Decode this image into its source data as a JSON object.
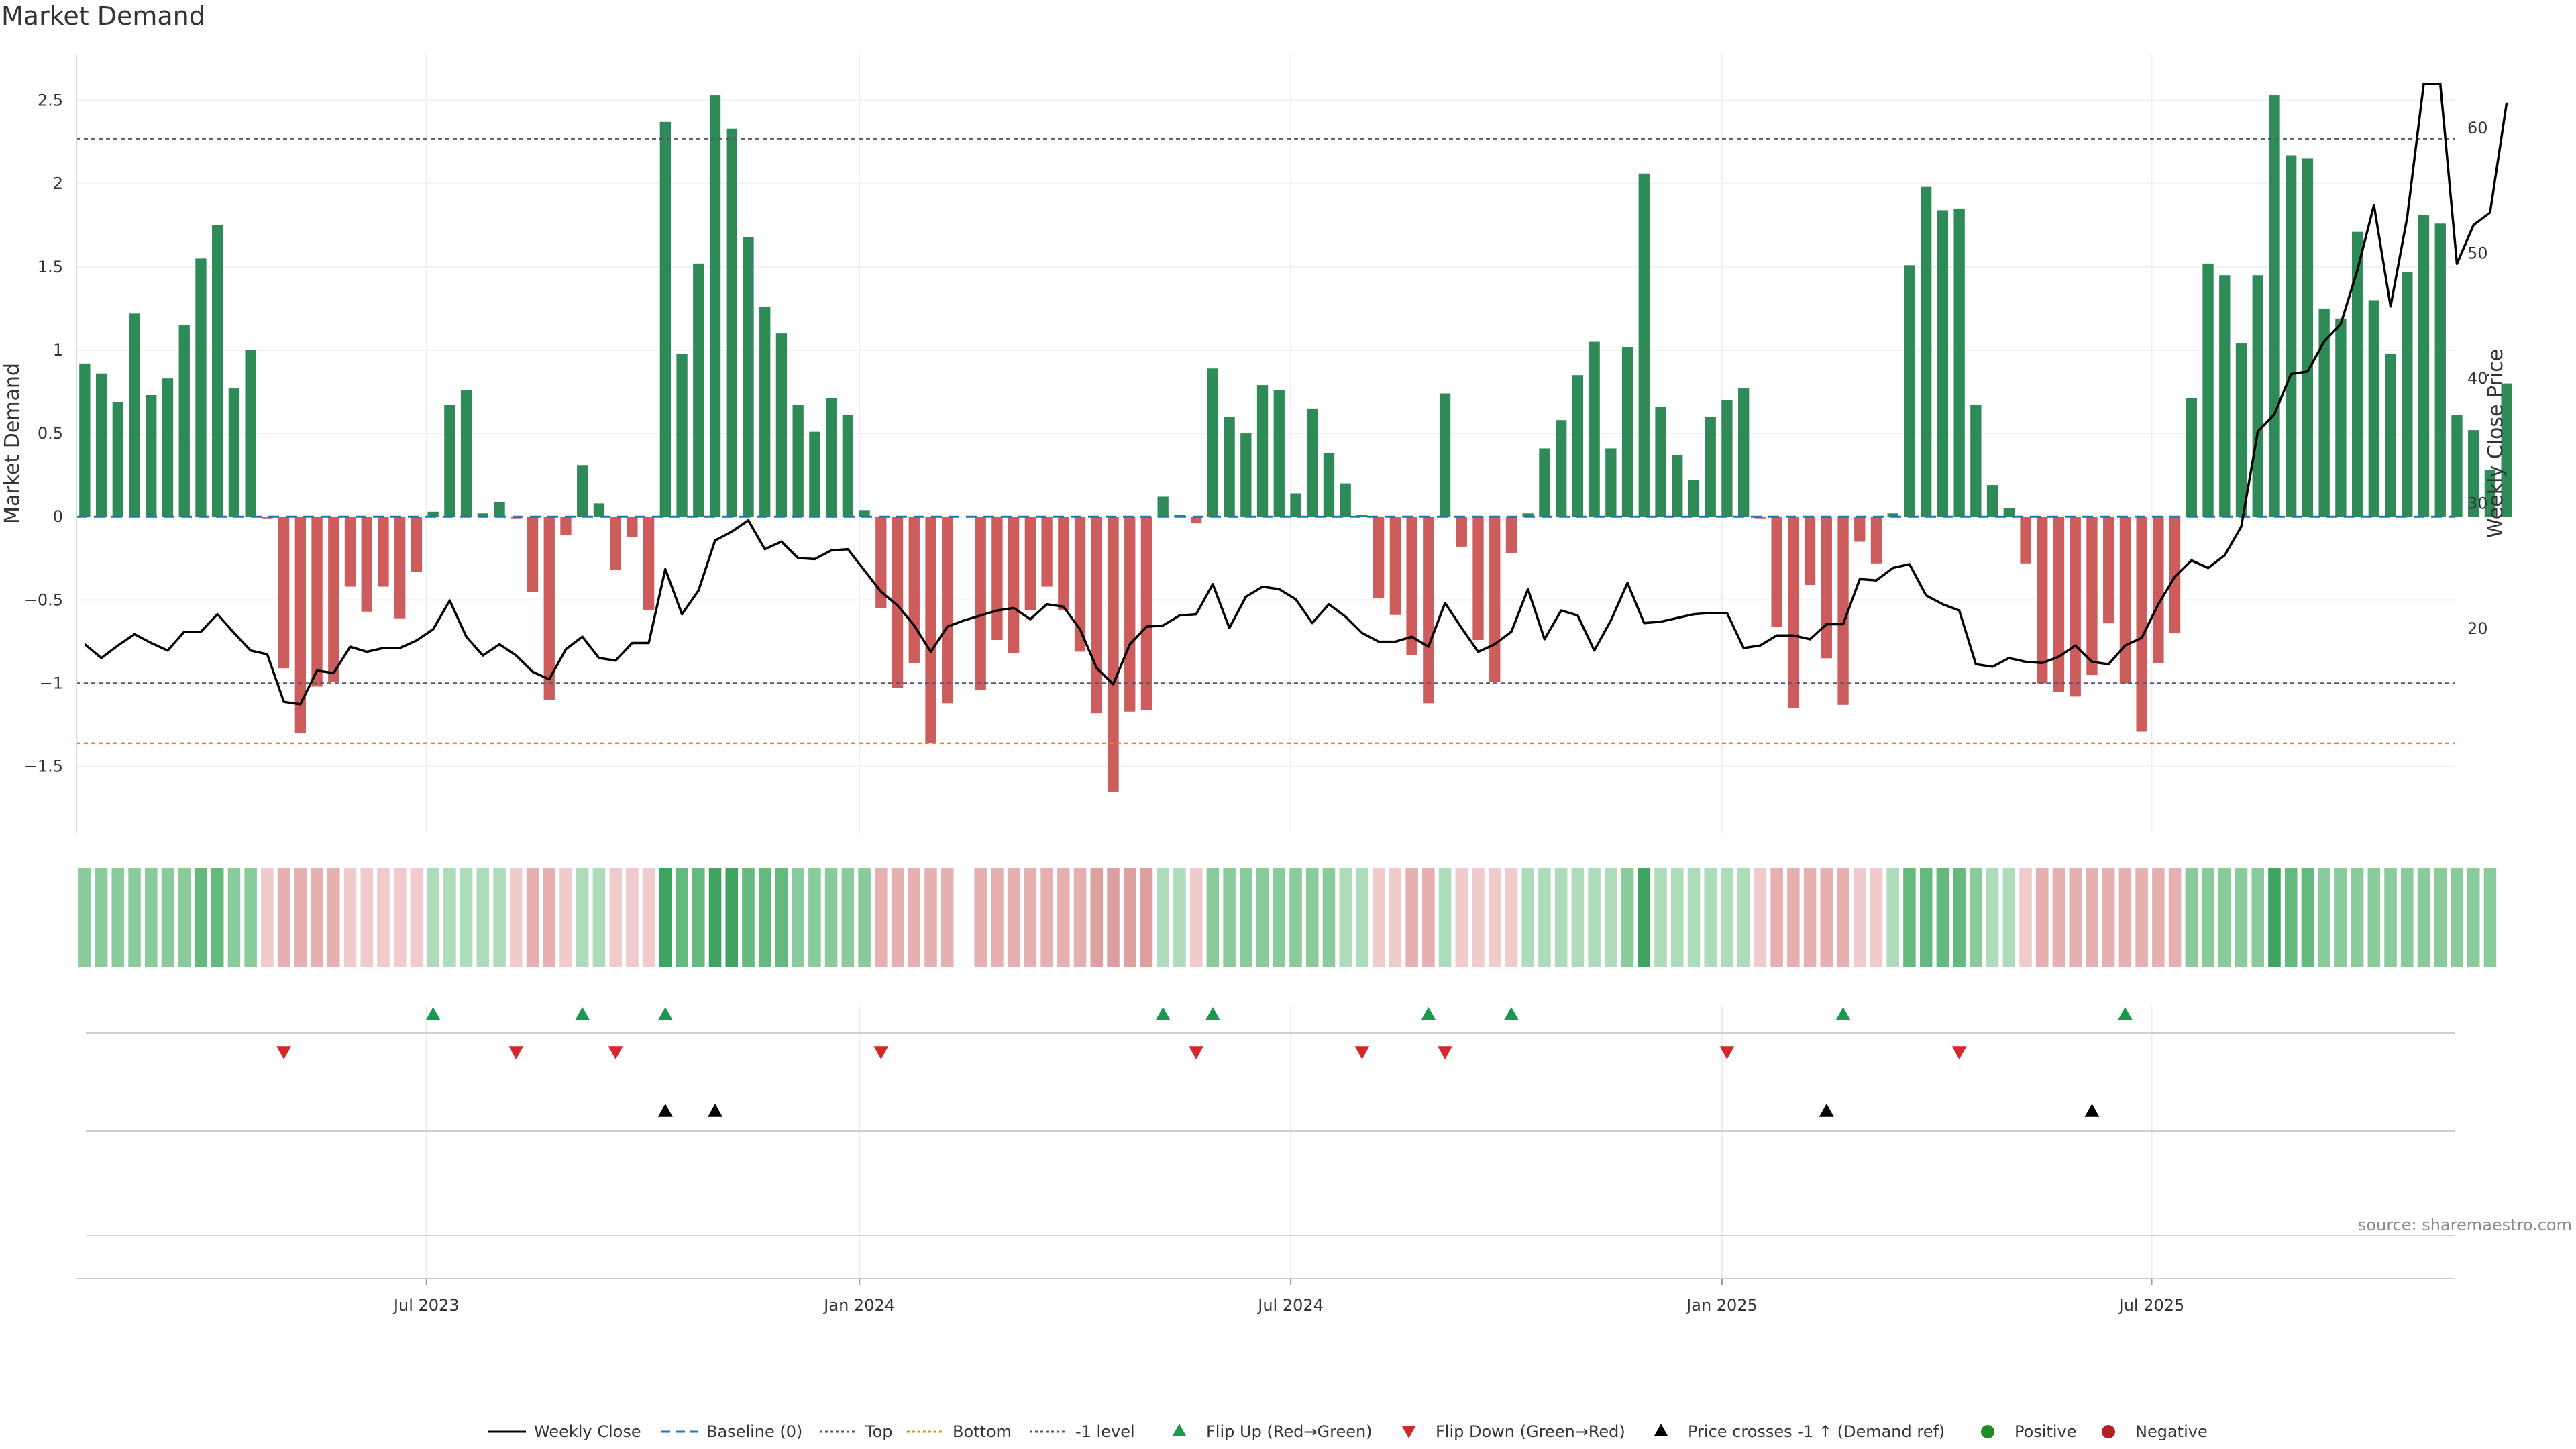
{
  "title": "Market Demand",
  "source": "source: sharemaestro.com",
  "colors": {
    "positive_bar": "#2e8b57",
    "negative_bar": "#cd5c5c",
    "price_line": "#000000",
    "baseline": "#1f77b4",
    "top_line": "#555577",
    "bottom_line": "#e08a1e",
    "flip_up": "#1a9850",
    "flip_down": "#d62728",
    "cross_marker": "#000000",
    "legend_positive": "#228b22",
    "legend_negative": "#b22222"
  },
  "chart_data": {
    "type": "bar",
    "title": "Market Demand",
    "ylabel": "Market Demand",
    "y2label": "Weekly Close Price",
    "ylim": [
      -1.9,
      2.78
    ],
    "y2lim": [
      3.6,
      65.9
    ],
    "yticks": [
      2.5,
      2,
      1.5,
      1,
      0.5,
      0,
      -0.5,
      -1,
      -1.5
    ],
    "ytick_labels": [
      "2.5",
      "2",
      "1.5",
      "1",
      "0.5",
      "0",
      "−0.5",
      "−1",
      "−1.5"
    ],
    "y2ticks": [
      20,
      30,
      40,
      50,
      60
    ],
    "y2tick_labels": [
      "20",
      "30",
      "40",
      "50",
      "60"
    ],
    "xlim": [
      0,
      143.4
    ],
    "xticks": [
      {
        "label": "Jul 2023",
        "at": 21.1
      },
      {
        "label": "Jan 2024",
        "at": 47.2
      },
      {
        "label": "Jul 2024",
        "at": 73.2
      },
      {
        "label": "Jan 2025",
        "at": 99.2
      },
      {
        "label": "Jul 2025",
        "at": 125.1
      }
    ],
    "reference_lines": {
      "baseline": 0,
      "top": 2.27,
      "bottom": -1.36,
      "minus_one": -1
    },
    "demand": [
      0.92,
      0.86,
      0.69,
      1.22,
      0.73,
      0.83,
      1.15,
      1.55,
      1.75,
      0.77,
      1,
      -0.01,
      -0.91,
      -1.3,
      -1.02,
      -0.99,
      -0.42,
      -0.57,
      -0.42,
      -0.61,
      -0.33,
      0.03,
      0.67,
      0.76,
      0.02,
      0.09,
      -0.01,
      -0.45,
      -1.1,
      -0.11,
      0.31,
      0.08,
      -0.32,
      -0.12,
      -0.56,
      2.37,
      0.98,
      1.52,
      2.53,
      2.33,
      1.68,
      1.26,
      1.1,
      0.67,
      0.51,
      0.71,
      0.61,
      0.04,
      -0.55,
      -1.03,
      -0.88,
      -1.36,
      -1.12,
      null,
      -1.04,
      -0.74,
      -0.82,
      -0.56,
      -0.42,
      -0.56,
      -0.81,
      -1.18,
      -1.65,
      -1.17,
      -1.16,
      0.12,
      0.01,
      -0.04,
      0.89,
      0.6,
      0.5,
      0.79,
      0.76,
      0.14,
      0.65,
      0.38,
      0.2,
      0.01,
      -0.49,
      -0.59,
      -0.83,
      -1.12,
      0.74,
      -0.18,
      -0.74,
      -0.99,
      -0.22,
      0.02,
      0.41,
      0.58,
      0.85,
      1.05,
      0.41,
      1.02,
      2.06,
      0.66,
      0.37,
      0.22,
      0.6,
      0.7,
      0.77,
      -0.01,
      -0.66,
      -1.15,
      -0.41,
      -0.85,
      -1.13,
      -0.15,
      -0.28,
      0.02,
      1.51,
      1.98,
      1.84,
      1.85,
      0.67,
      0.19,
      0.05,
      -0.28,
      -1,
      -1.05,
      -1.08,
      -0.95,
      -0.64,
      -1,
      -1.29,
      -0.88,
      -0.7,
      0.71,
      1.52,
      1.45,
      1.04,
      1.45,
      2.53,
      2.17,
      2.15,
      1.25,
      1.19,
      1.71,
      1.3,
      0.98,
      1.47,
      1.81,
      1.76,
      0.61,
      0.52,
      0.28,
      0.8
    ],
    "price": [
      18.7,
      17.6,
      18.6,
      19.5,
      18.8,
      18.2,
      19.7,
      19.7,
      21.1,
      19.6,
      18.2,
      17.9,
      14.1,
      13.9,
      16.6,
      16.4,
      18.5,
      18.1,
      18.4,
      18.4,
      19,
      19.9,
      22.2,
      19.3,
      17.8,
      18.7,
      17.8,
      16.5,
      15.9,
      18.3,
      19.3,
      17.6,
      17.4,
      18.8,
      18.8,
      24.7,
      21.1,
      23,
      27,
      27.7,
      28.6,
      26.3,
      26.9,
      25.6,
      25.5,
      26.2,
      26.3,
      24.6,
      22.9,
      21.8,
      20.2,
      18.1,
      20.1,
      20.6,
      21,
      21.4,
      21.6,
      20.7,
      21.9,
      21.7,
      19.9,
      16.8,
      15.5,
      18.7,
      20.1,
      20.2,
      21,
      21.1,
      23.5,
      20,
      22.5,
      23.3,
      23.1,
      22.3,
      20.4,
      21.9,
      20.9,
      19.6,
      18.9,
      18.9,
      19.3,
      18.5,
      22,
      20,
      18.1,
      18.7,
      19.7,
      23.1,
      19.1,
      21.4,
      21,
      18.2,
      20.6,
      23.6,
      20.4,
      20.5,
      20.8,
      21.1,
      21.2,
      21.2,
      18.4,
      18.6,
      19.4,
      19.4,
      19.1,
      20.3,
      20.3,
      23.9,
      23.8,
      24.8,
      25.1,
      22.6,
      21.9,
      21.4,
      17.1,
      16.9,
      17.6,
      17.3,
      17.2,
      17.7,
      18.6,
      17.3,
      17.1,
      18.6,
      19.2,
      21.9,
      24.1,
      25.4,
      24.8,
      25.8,
      28.1,
      35.7,
      37.1,
      40.3,
      40.5,
      42.9,
      44.3,
      48.6,
      53.8,
      45.7,
      52.8,
      63.5,
      63.5,
      49.1,
      52.2,
      53.2,
      62
    ]
  },
  "heat_strip": {
    "description_levels": "intensity per week; positive green, negative red",
    "values": [
      2,
      2,
      2,
      2,
      2,
      2,
      2,
      3,
      3,
      2,
      2,
      1,
      2,
      2,
      2,
      2,
      1,
      1,
      1,
      1,
      1,
      1,
      1,
      1,
      1,
      1,
      1,
      2,
      2,
      1,
      1,
      1,
      1,
      1,
      1,
      4,
      3,
      3,
      4,
      4,
      3,
      3,
      3,
      2,
      2,
      2,
      2,
      2,
      2,
      2,
      2,
      2,
      2,
      null,
      2,
      2,
      2,
      2,
      2,
      2,
      2,
      3,
      3,
      3,
      3,
      1,
      1,
      1,
      2,
      2,
      2,
      2,
      2,
      2,
      2,
      2,
      1,
      1,
      1,
      1,
      2,
      2,
      1,
      1,
      1,
      1,
      1,
      1,
      1,
      1,
      1,
      1,
      1,
      2,
      4,
      1,
      1,
      1,
      1,
      1,
      1,
      1,
      2,
      2,
      2,
      2,
      2,
      1,
      1,
      1,
      3,
      3,
      3,
      3,
      2,
      1,
      1,
      1,
      2,
      2,
      2,
      2,
      2,
      2,
      2,
      2,
      2,
      2,
      2,
      2,
      2,
      2,
      4,
      3,
      3,
      2,
      2,
      2,
      2,
      2,
      2,
      2,
      2,
      2,
      2,
      2
    ]
  },
  "signals": {
    "flip_up_weeks": [
      21,
      30,
      35,
      65,
      68,
      81,
      86,
      106,
      123
    ],
    "flip_down_weeks": [
      12,
      26,
      32,
      48,
      67,
      77,
      82,
      99,
      113
    ],
    "price_cross_weeks": [
      35,
      38,
      105,
      121
    ]
  },
  "legend": [
    {
      "label": "Weekly Close",
      "kind": "line",
      "color": "#000000",
      "dash": "none"
    },
    {
      "label": "Baseline (0)",
      "kind": "line",
      "color": "#1f77b4",
      "dash": "14 8"
    },
    {
      "label": "Top",
      "kind": "line",
      "color": "#555577",
      "dash": "4 4"
    },
    {
      "label": "Bottom",
      "kind": "line",
      "color": "#e08a1e",
      "dash": "4 4"
    },
    {
      "label": "-1 level",
      "kind": "line",
      "color": "#555577",
      "dash": "4 4"
    },
    {
      "label": "Flip Up (Red→Green)",
      "kind": "tri-up",
      "color": "#1a9850"
    },
    {
      "label": "Flip Down (Green→Red)",
      "kind": "tri-down",
      "color": "#d62728"
    },
    {
      "label": "Price crosses -1 ↑ (Demand ref)",
      "kind": "tri-up",
      "color": "#000000"
    },
    {
      "label": "Positive",
      "kind": "dot",
      "color": "#228b22"
    },
    {
      "label": "Negative",
      "kind": "dot",
      "color": "#b22222"
    }
  ]
}
